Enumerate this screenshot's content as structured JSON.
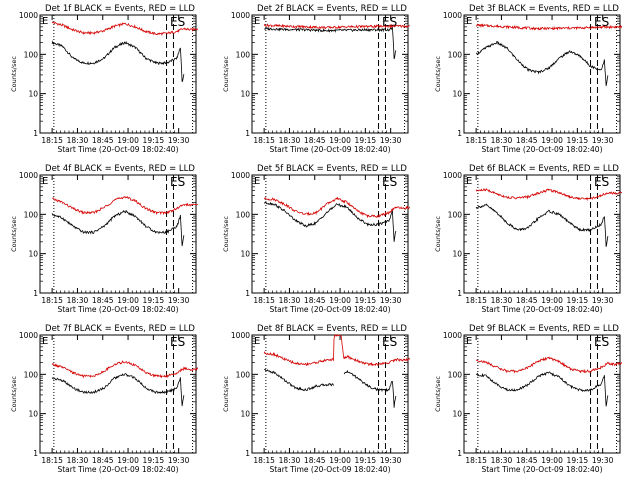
{
  "figure": {
    "ylabel": "Counts/sec",
    "xlabel": "Start Time (20-Oct-09 18:02:40)",
    "legend_text": "BLACK = Events, RED = LLD",
    "colors": {
      "events": "#000000",
      "lld": "#d40000",
      "axes": "#000000"
    }
  },
  "chart_data": [
    {
      "type": "line",
      "title": "Det 1f BLACK = Events, RED = LLD",
      "corner_labels": {
        "left": "E",
        "right": "ES"
      },
      "x_ticks": [
        "18:15",
        "18:30",
        "18:45",
        "19:00",
        "19:15",
        "19:30"
      ],
      "x_range_min": [
        0,
        45
      ],
      "yscale": "log",
      "ylim": [
        1,
        1000
      ],
      "y_ticks": [
        "1",
        "10",
        "100",
        "1000"
      ],
      "dotted_lines_min": [
        0.5,
        40.5
      ],
      "dashed_lines_min": [
        36.5,
        38.5
      ],
      "series": [
        {
          "name": "Events",
          "color": "#000000",
          "x": [
            0,
            3,
            6,
            9,
            12,
            15,
            18,
            21,
            24,
            27,
            30,
            33,
            36,
            37,
            37.5,
            38
          ],
          "y": [
            200,
            160,
            80,
            60,
            60,
            80,
            150,
            200,
            150,
            80,
            60,
            60,
            80,
            150,
            20,
            30
          ]
        },
        {
          "name": "LLD",
          "color": "#d40000",
          "x": [
            0,
            3,
            6,
            9,
            12,
            15,
            18,
            21,
            24,
            27,
            30,
            33,
            36,
            38,
            40,
            42
          ],
          "y": [
            650,
            550,
            420,
            350,
            350,
            400,
            520,
            600,
            500,
            380,
            330,
            340,
            380,
            450,
            420,
            450
          ]
        }
      ]
    },
    {
      "type": "line",
      "title": "Det 2f BLACK = Events, RED = LLD",
      "corner_labels": {
        "left": "E",
        "right": "ES"
      },
      "x_ticks": [
        "18:15",
        "18:30",
        "18:45",
        "19:00",
        "19:15",
        "19:30"
      ],
      "x_range_min": [
        0,
        45
      ],
      "yscale": "log",
      "ylim": [
        1,
        1000
      ],
      "y_ticks": [
        "1",
        "10",
        "100",
        "1000"
      ],
      "dotted_lines_min": [
        0.5,
        40.5
      ],
      "dashed_lines_min": [
        36.5,
        38.5
      ],
      "series": [
        {
          "name": "Events",
          "color": "#000000",
          "x": [
            0,
            6,
            12,
            18,
            24,
            30,
            36,
            37,
            37.5,
            38
          ],
          "y": [
            450,
            430,
            420,
            400,
            410,
            420,
            420,
            480,
            80,
            120
          ]
        },
        {
          "name": "LLD",
          "color": "#d40000",
          "x": [
            0,
            6,
            12,
            18,
            24,
            30,
            36,
            42
          ],
          "y": [
            550,
            520,
            500,
            480,
            500,
            510,
            520,
            520
          ]
        }
      ]
    },
    {
      "type": "line",
      "title": "Det 3f BLACK = Events, RED = LLD",
      "corner_labels": {
        "left": "E",
        "right": "ES"
      },
      "x_ticks": [
        "18:15",
        "18:30",
        "18:45",
        "19:00",
        "19:15",
        "19:30"
      ],
      "x_range_min": [
        0,
        45
      ],
      "yscale": "log",
      "ylim": [
        1,
        1000
      ],
      "y_ticks": [
        "1",
        "10",
        "100",
        "1000"
      ],
      "dotted_lines_min": [
        0.5,
        40.5
      ],
      "dashed_lines_min": [
        36.5,
        38.5
      ],
      "series": [
        {
          "name": "Events",
          "color": "#000000",
          "x": [
            0,
            3,
            6,
            9,
            12,
            15,
            18,
            21,
            24,
            27,
            30,
            33,
            36,
            37,
            37.5,
            38
          ],
          "y": [
            100,
            150,
            200,
            140,
            70,
            40,
            35,
            45,
            80,
            120,
            90,
            50,
            40,
            70,
            15,
            30
          ]
        },
        {
          "name": "LLD",
          "color": "#d40000",
          "x": [
            0,
            6,
            12,
            18,
            24,
            30,
            36,
            42
          ],
          "y": [
            550,
            520,
            480,
            450,
            460,
            470,
            490,
            500
          ]
        }
      ]
    },
    {
      "type": "line",
      "title": "Det 4f BLACK = Events, RED = LLD",
      "corner_labels": {
        "left": "E",
        "right": "ES"
      },
      "x_ticks": [
        "18:15",
        "18:30",
        "18:45",
        "19:00",
        "19:15",
        "19:30"
      ],
      "x_range_min": [
        0,
        45
      ],
      "yscale": "log",
      "ylim": [
        1,
        1000
      ],
      "y_ticks": [
        "1",
        "10",
        "100",
        "1000"
      ],
      "dotted_lines_min": [
        0.5,
        40.5
      ],
      "dashed_lines_min": [
        36.5,
        38.5
      ],
      "series": [
        {
          "name": "Events",
          "color": "#000000",
          "x": [
            0,
            3,
            6,
            9,
            12,
            15,
            18,
            21,
            24,
            27,
            30,
            33,
            36,
            37,
            37.5,
            38
          ],
          "y": [
            100,
            80,
            50,
            35,
            35,
            50,
            90,
            120,
            90,
            50,
            35,
            35,
            50,
            90,
            15,
            30
          ]
        },
        {
          "name": "LLD",
          "color": "#d40000",
          "x": [
            0,
            3,
            6,
            9,
            12,
            15,
            18,
            21,
            24,
            27,
            30,
            33,
            36,
            38,
            40,
            42
          ],
          "y": [
            250,
            200,
            140,
            110,
            110,
            150,
            230,
            280,
            220,
            140,
            110,
            110,
            140,
            180,
            170,
            180
          ]
        }
      ]
    },
    {
      "type": "line",
      "title": "Det 5f BLACK = Events, RED = LLD",
      "corner_labels": {
        "left": "E",
        "right": "ES"
      },
      "x_ticks": [
        "18:15",
        "18:30",
        "18:45",
        "19:00",
        "19:15",
        "19:30"
      ],
      "x_range_min": [
        0,
        45
      ],
      "yscale": "log",
      "ylim": [
        1,
        1000
      ],
      "y_ticks": [
        "1",
        "10",
        "100",
        "1000"
      ],
      "dotted_lines_min": [
        0.5,
        40.5
      ],
      "dashed_lines_min": [
        36.5,
        38.5
      ],
      "series": [
        {
          "name": "Events",
          "color": "#000000",
          "x": [
            0,
            3,
            6,
            9,
            12,
            15,
            18,
            21,
            24,
            27,
            30,
            33,
            36,
            37,
            37.5,
            38
          ],
          "y": [
            200,
            180,
            120,
            70,
            50,
            60,
            110,
            180,
            150,
            80,
            55,
            55,
            70,
            120,
            20,
            40
          ]
        },
        {
          "name": "LLD",
          "color": "#d40000",
          "x": [
            0,
            3,
            6,
            9,
            12,
            15,
            18,
            21,
            24,
            27,
            30,
            33,
            36,
            38,
            40,
            42
          ],
          "y": [
            250,
            240,
            180,
            120,
            100,
            110,
            180,
            250,
            200,
            120,
            90,
            90,
            110,
            150,
            140,
            150
          ]
        }
      ]
    },
    {
      "type": "line",
      "title": "Det 6f BLACK = Events, RED = LLD",
      "corner_labels": {
        "left": "E",
        "right": "ES"
      },
      "x_ticks": [
        "18:15",
        "18:30",
        "18:45",
        "19:00",
        "19:15",
        "19:30"
      ],
      "x_range_min": [
        0,
        45
      ],
      "yscale": "log",
      "ylim": [
        1,
        1000
      ],
      "y_ticks": [
        "1",
        "10",
        "100",
        "1000"
      ],
      "dotted_lines_min": [
        0.5,
        40.5
      ],
      "dashed_lines_min": [
        36.5,
        38.5
      ],
      "series": [
        {
          "name": "Events",
          "color": "#000000",
          "x": [
            0,
            3,
            6,
            9,
            12,
            15,
            18,
            21,
            24,
            27,
            30,
            33,
            36,
            37,
            37.5,
            38
          ],
          "y": [
            150,
            170,
            110,
            60,
            40,
            45,
            80,
            120,
            100,
            60,
            40,
            40,
            55,
            90,
            15,
            30
          ]
        },
        {
          "name": "LLD",
          "color": "#d40000",
          "x": [
            0,
            3,
            6,
            9,
            12,
            15,
            18,
            21,
            24,
            27,
            30,
            33,
            36,
            38,
            40,
            42
          ],
          "y": [
            400,
            420,
            330,
            270,
            260,
            280,
            350,
            420,
            360,
            280,
            250,
            250,
            300,
            360,
            340,
            360
          ]
        }
      ]
    },
    {
      "type": "line",
      "title": "Det 7f BLACK = Events, RED = LLD",
      "corner_labels": {
        "left": "E",
        "right": "ES"
      },
      "x_ticks": [
        "18:15",
        "18:30",
        "18:45",
        "19:00",
        "19:15",
        "19:30"
      ],
      "x_range_min": [
        0,
        45
      ],
      "yscale": "log",
      "ylim": [
        1,
        1000
      ],
      "y_ticks": [
        "1",
        "10",
        "100",
        "1000"
      ],
      "dotted_lines_min": [
        0.5,
        40.5
      ],
      "dashed_lines_min": [
        36.5,
        38.5
      ],
      "series": [
        {
          "name": "Events",
          "color": "#000000",
          "x": [
            0,
            3,
            6,
            9,
            12,
            15,
            18,
            21,
            24,
            27,
            30,
            33,
            36,
            37,
            37.5,
            38
          ],
          "y": [
            80,
            70,
            45,
            35,
            35,
            45,
            80,
            100,
            80,
            45,
            35,
            35,
            45,
            80,
            15,
            30
          ]
        },
        {
          "name": "LLD",
          "color": "#d40000",
          "x": [
            0,
            3,
            6,
            9,
            12,
            15,
            18,
            21,
            24,
            27,
            30,
            33,
            36,
            38,
            40,
            42
          ],
          "y": [
            180,
            150,
            110,
            90,
            90,
            120,
            180,
            210,
            170,
            110,
            90,
            90,
            110,
            140,
            130,
            140
          ]
        }
      ]
    },
    {
      "type": "line",
      "title": "Det 8f BLACK = Events, RED = LLD",
      "corner_labels": {
        "left": "E",
        "right": "ES"
      },
      "x_ticks": [
        "18:15",
        "18:30",
        "18:45",
        "19:00",
        "19:15",
        "19:30"
      ],
      "x_range_min": [
        0,
        45
      ],
      "yscale": "log",
      "ylim": [
        1,
        1000
      ],
      "y_ticks": [
        "1",
        "10",
        "100",
        "1000"
      ],
      "dotted_lines_min": [
        0.5,
        40.5
      ],
      "dashed_lines_min": [
        36.5,
        38.5
      ],
      "series": [
        {
          "name": "Events",
          "color": "#000000",
          "x": [
            0,
            3,
            6,
            9,
            12,
            15,
            18,
            20
          ],
          "y": [
            130,
            110,
            70,
            45,
            40,
            50,
            55,
            55
          ],
          "x2": [
            23,
            24,
            27,
            30,
            33,
            36,
            37,
            37.5,
            38
          ],
          "y2": [
            100,
            120,
            80,
            50,
            40,
            40,
            70,
            15,
            30
          ]
        },
        {
          "name": "LLD",
          "color": "#d40000",
          "x": [
            0,
            3,
            6,
            9,
            12,
            15,
            18,
            20,
            20.2,
            21,
            22,
            22.2,
            23,
            24,
            27,
            30,
            33,
            36,
            38,
            40,
            42
          ],
          "y": [
            350,
            320,
            240,
            190,
            180,
            200,
            230,
            240,
            1000,
            1000,
            1000,
            1000,
            250,
            280,
            220,
            180,
            180,
            200,
            240,
            230,
            240
          ]
        }
      ]
    },
    {
      "type": "line",
      "title": "Det 9f BLACK = Events, RED = LLD",
      "corner_labels": {
        "left": "E",
        "right": "ES"
      },
      "x_ticks": [
        "18:15",
        "18:30",
        "18:45",
        "19:00",
        "19:15",
        "19:30"
      ],
      "x_range_min": [
        0,
        45
      ],
      "yscale": "log",
      "ylim": [
        1,
        1000
      ],
      "y_ticks": [
        "1",
        "10",
        "100",
        "1000"
      ],
      "dotted_lines_min": [
        0.5,
        40.5
      ],
      "dashed_lines_min": [
        36.5,
        38.5
      ],
      "series": [
        {
          "name": "Events",
          "color": "#000000",
          "x": [
            0,
            3,
            6,
            9,
            12,
            15,
            18,
            21,
            24,
            27,
            30,
            33,
            36,
            37,
            37.5,
            38
          ],
          "y": [
            100,
            90,
            55,
            40,
            40,
            55,
            90,
            110,
            85,
            50,
            40,
            40,
            55,
            90,
            15,
            30
          ]
        },
        {
          "name": "LLD",
          "color": "#d40000",
          "x": [
            0,
            3,
            6,
            9,
            12,
            15,
            18,
            21,
            24,
            27,
            30,
            33,
            36,
            38,
            40,
            42
          ],
          "y": [
            230,
            200,
            150,
            120,
            120,
            150,
            220,
            260,
            210,
            140,
            120,
            120,
            150,
            190,
            180,
            190
          ]
        }
      ]
    }
  ]
}
